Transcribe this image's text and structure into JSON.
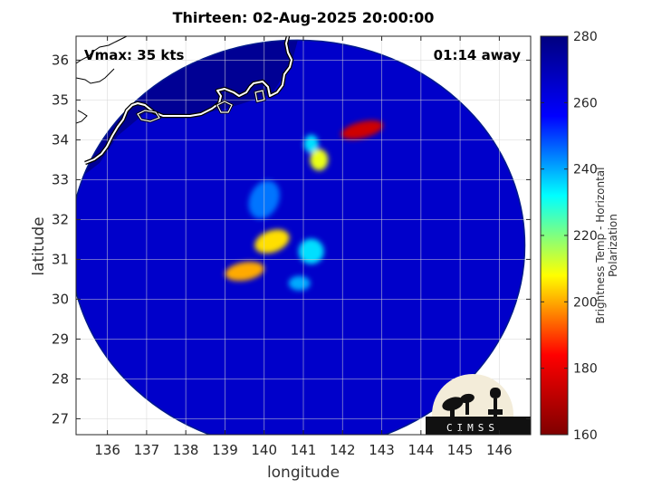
{
  "title": "Thirteen: 02-Aug-2025 20:00:00",
  "vmax_text": "Vmax: 35 kts",
  "away_text": "01:14 away",
  "xlabel": "longitude",
  "ylabel": "latitude",
  "colorbar_label": "Brightness Temp - Horizontal Polarization",
  "logo_text": "CIMSS",
  "map": {
    "lon_range": [
      135.2,
      146.8
    ],
    "lat_range": [
      26.6,
      36.6
    ],
    "lon_ticks": [
      136,
      137,
      138,
      139,
      140,
      141,
      142,
      143,
      144,
      145,
      146
    ],
    "lat_ticks": [
      27,
      28,
      29,
      30,
      31,
      32,
      33,
      34,
      35,
      36
    ],
    "grid": true,
    "swath_center": [
      140.85,
      31.35
    ],
    "swath_radius_deg": [
      5.8,
      5.15
    ],
    "background_tb": 266,
    "land_tb": 276,
    "features": [
      {
        "lon": 142.5,
        "lat": 34.25,
        "tb": 175
      },
      {
        "lon": 141.4,
        "lat": 33.5,
        "tb": 210
      },
      {
        "lon": 141.2,
        "lat": 33.9,
        "tb": 235
      },
      {
        "lon": 140.2,
        "lat": 31.45,
        "tb": 205
      },
      {
        "lon": 139.5,
        "lat": 30.7,
        "tb": 200
      },
      {
        "lon": 140.0,
        "lat": 32.5,
        "tb": 245
      },
      {
        "lon": 141.2,
        "lat": 31.2,
        "tb": 235
      },
      {
        "lon": 140.9,
        "lat": 30.4,
        "tb": 240
      }
    ]
  },
  "colorbar": {
    "range": [
      160,
      280
    ],
    "ticks": [
      160,
      180,
      200,
      220,
      240,
      260,
      280
    ],
    "colors": [
      "#7f0000",
      "#ff0000",
      "#ffff00",
      "#00ffff",
      "#0000ff",
      "#00007f"
    ]
  }
}
